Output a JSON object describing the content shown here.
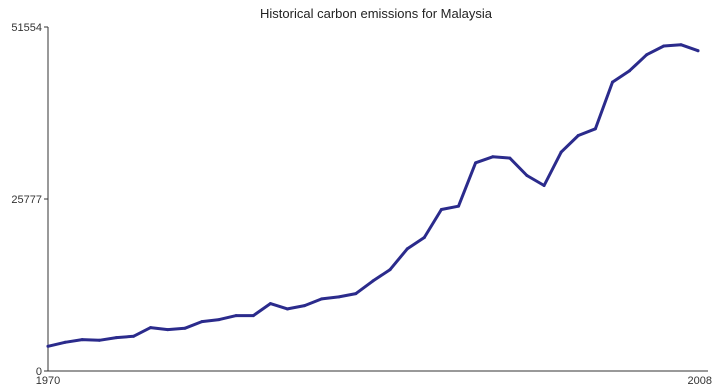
{
  "chart_data": {
    "type": "line",
    "title": "Historical carbon emissions for Malaysia",
    "xlabel": "",
    "ylabel": "",
    "xlim": [
      1970,
      2008
    ],
    "ylim": [
      0,
      51554
    ],
    "y_ticks": [
      0,
      25777,
      51554
    ],
    "y_tick_labels": [
      "0",
      "25777",
      "51554"
    ],
    "x_tick_labels": [
      "1970",
      "2008"
    ],
    "grid": false,
    "x": [
      1970,
      1971,
      1972,
      1973,
      1974,
      1975,
      1976,
      1977,
      1978,
      1979,
      1980,
      1981,
      1982,
      1983,
      1984,
      1985,
      1986,
      1987,
      1988,
      1989,
      1990,
      1991,
      1992,
      1993,
      1994,
      1995,
      1996,
      1997,
      1998,
      1999,
      2000,
      2001,
      2002,
      2003,
      2004,
      2005,
      2006,
      2007,
      2008
    ],
    "series": [
      {
        "values": [
          3700,
          4300,
          4700,
          4600,
          5000,
          5200,
          6500,
          6200,
          6400,
          7400,
          7700,
          8300,
          8300,
          10100,
          9300,
          9800,
          10800,
          11100,
          11600,
          13500,
          15200,
          18300,
          20000,
          24200,
          24700,
          31200,
          32100,
          31900,
          29300,
          27800,
          32800,
          35300,
          36300,
          43300,
          45000,
          47400,
          48700,
          48900,
          48000
        ]
      }
    ]
  }
}
